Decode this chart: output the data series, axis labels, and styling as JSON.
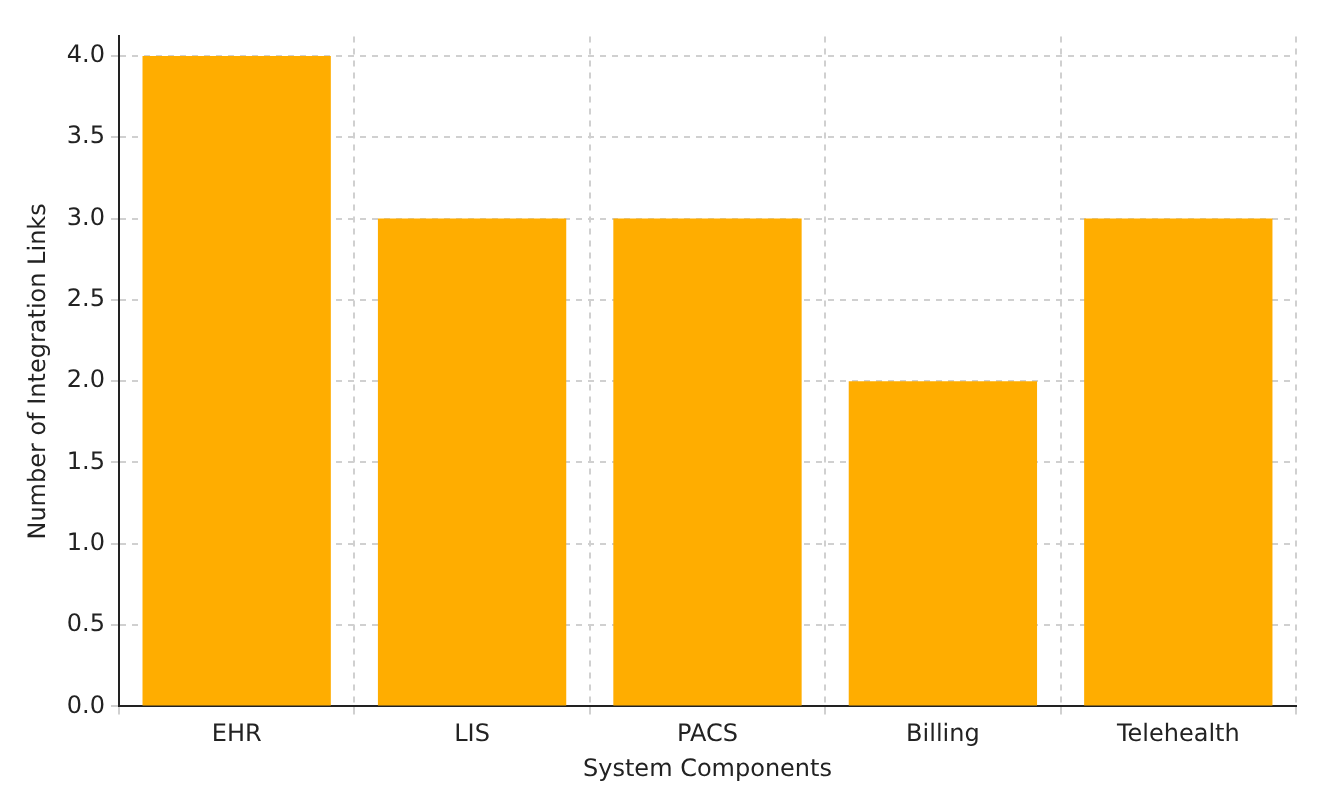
{
  "chart_data": {
    "type": "bar",
    "xlabel": "System Components",
    "ylabel": "Number of Integration Links",
    "categories": [
      "EHR",
      "LIS",
      "PACS",
      "Billing",
      "Telehealth"
    ],
    "values": [
      4,
      3,
      3,
      2,
      3
    ],
    "color": "#ffad00",
    "ylim": [
      0,
      4.12
    ],
    "yticks": [
      {
        "value": 0,
        "label": "0.0"
      },
      {
        "value": 0.5,
        "label": "0.5"
      },
      {
        "value": 1,
        "label": "1.0"
      },
      {
        "value": 1.5,
        "label": "1.5"
      },
      {
        "value": 2,
        "label": "2.0"
      },
      {
        "value": 2.5,
        "label": "2.5"
      },
      {
        "value": 3,
        "label": "3.0"
      },
      {
        "value": 3.5,
        "label": "3.5"
      },
      {
        "value": 4,
        "label": "4.0"
      }
    ],
    "grid": true
  }
}
